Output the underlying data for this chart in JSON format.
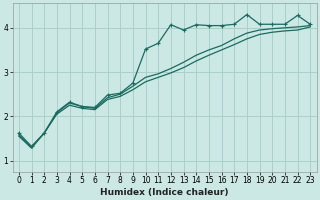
{
  "xlabel": "Humidex (Indice chaleur)",
  "ylabel": "",
  "xlim": [
    -0.5,
    23.5
  ],
  "ylim": [
    0.75,
    4.55
  ],
  "bg_color": "#cce8e4",
  "grid_color": "#aad0cc",
  "line_color": "#1a6b60",
  "xticks": [
    0,
    1,
    2,
    3,
    4,
    5,
    6,
    7,
    8,
    9,
    10,
    11,
    12,
    13,
    14,
    15,
    16,
    17,
    18,
    19,
    20,
    21,
    22,
    23
  ],
  "yticks": [
    1,
    2,
    3,
    4
  ],
  "line1_x": [
    0,
    1,
    2,
    3,
    4,
    5,
    6,
    7,
    8,
    9,
    10,
    11,
    12,
    13,
    14,
    15,
    16,
    17,
    18,
    19,
    20,
    21,
    22,
    23
  ],
  "line1_y": [
    1.62,
    1.32,
    1.62,
    2.1,
    2.32,
    2.22,
    2.2,
    2.48,
    2.52,
    2.75,
    3.52,
    3.65,
    4.07,
    3.95,
    4.07,
    4.05,
    4.05,
    4.08,
    4.3,
    4.08,
    4.08,
    4.08,
    4.28,
    4.08
  ],
  "line2_x": [
    0,
    1,
    2,
    3,
    4,
    5,
    6,
    7,
    8,
    9,
    10,
    11,
    12,
    13,
    14,
    15,
    16,
    17,
    18,
    19,
    20,
    21,
    22,
    23
  ],
  "line2_y": [
    1.55,
    1.28,
    1.62,
    2.05,
    2.25,
    2.18,
    2.15,
    2.38,
    2.45,
    2.6,
    2.78,
    2.88,
    2.98,
    3.1,
    3.25,
    3.38,
    3.5,
    3.62,
    3.75,
    3.85,
    3.9,
    3.93,
    3.95,
    4.02
  ],
  "line3_x": [
    0,
    1,
    2,
    3,
    4,
    5,
    6,
    7,
    8,
    9,
    10,
    11,
    12,
    13,
    14,
    15,
    16,
    17,
    18,
    19,
    20,
    21,
    22,
    23
  ],
  "line3_y": [
    1.58,
    1.3,
    1.62,
    2.08,
    2.3,
    2.22,
    2.18,
    2.42,
    2.5,
    2.68,
    2.88,
    2.96,
    3.08,
    3.22,
    3.38,
    3.5,
    3.6,
    3.75,
    3.88,
    3.95,
    3.98,
    4.0,
    4.02,
    4.05
  ]
}
